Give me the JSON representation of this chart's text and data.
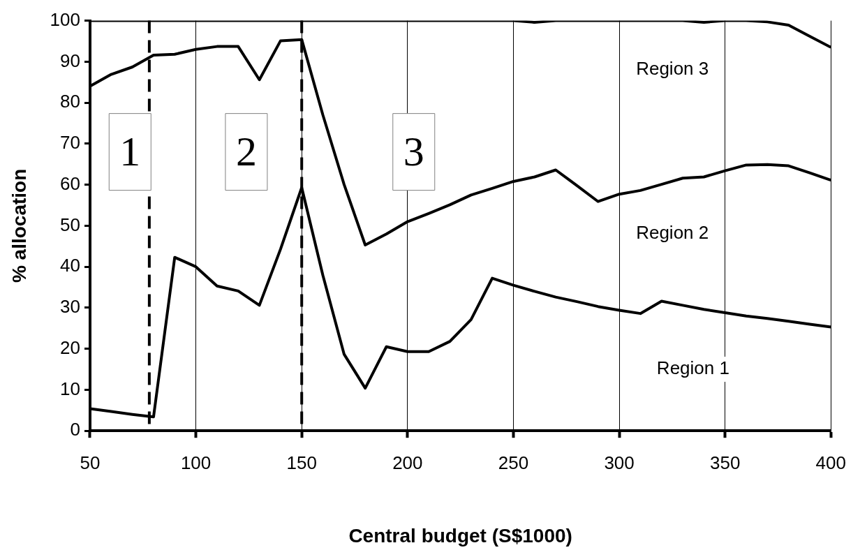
{
  "chart_data": {
    "type": "line",
    "xlabel": "Central budget (S$1000)",
    "ylabel": "% allocation",
    "x": [
      50,
      60,
      70,
      80,
      90,
      100,
      110,
      120,
      130,
      140,
      150,
      160,
      170,
      180,
      190,
      200,
      210,
      220,
      230,
      240,
      250,
      260,
      270,
      280,
      290,
      300,
      310,
      320,
      330,
      340,
      350,
      360,
      370,
      380,
      390,
      400
    ],
    "series": [
      {
        "color": "#000000",
        "values": [
          5.4,
          4.7,
          4.0,
          3.4,
          42.3,
          40.0,
          35.3,
          34.1,
          30.6,
          44.3,
          59.3,
          37.9,
          18.7,
          10.4,
          20.5,
          19.3,
          19.3,
          21.8,
          27.1,
          37.2,
          35.5,
          34.0,
          32.6,
          31.5,
          30.3,
          29.4,
          28.6,
          31.6,
          30.6,
          29.6,
          28.8,
          28.0,
          27.4,
          26.7,
          26.0,
          25.3
        ]
      },
      {
        "color": "#000000",
        "values": [
          84.0,
          86.9,
          88.7,
          91.6,
          91.8,
          93.0,
          93.7,
          93.7,
          85.6,
          95.1,
          95.4,
          77.0,
          60.1,
          45.3,
          48.0,
          51.0,
          53.0,
          55.1,
          57.5,
          59.1,
          60.8,
          61.9,
          63.6,
          59.8,
          55.9,
          57.7,
          58.6,
          60.1,
          61.6,
          61.9,
          63.4,
          64.8,
          64.9,
          64.6,
          62.9,
          61.1
        ]
      },
      {
        "color": "#000000",
        "values": [
          100,
          100,
          100,
          100,
          100,
          100,
          100,
          100,
          100,
          100,
          100,
          100,
          100,
          100,
          100,
          100,
          100,
          100,
          100,
          100,
          100,
          99.6,
          100,
          100,
          100,
          100,
          100,
          100,
          100,
          99.6,
          100,
          100,
          99.7,
          98.9,
          96.2,
          93.5
        ]
      }
    ],
    "xlim": [
      50,
      400
    ],
    "xticks": [
      50,
      100,
      150,
      200,
      250,
      300,
      350,
      400
    ],
    "ylim": [
      0,
      100
    ],
    "yticks": [
      0,
      10,
      20,
      30,
      40,
      50,
      60,
      70,
      80,
      90,
      100
    ],
    "grid": "x",
    "legend": false,
    "marker": "none",
    "line_style": "solid",
    "ref_lines": [
      {
        "axis": "x",
        "value": 78,
        "color": "#000000",
        "line_style": "dashed"
      },
      {
        "axis": "x",
        "value": 150,
        "color": "#000000",
        "line_style": "dashed"
      }
    ],
    "annotations": [
      "1",
      "2",
      "3",
      "Region 3",
      "Region 2",
      "Region 1"
    ]
  }
}
